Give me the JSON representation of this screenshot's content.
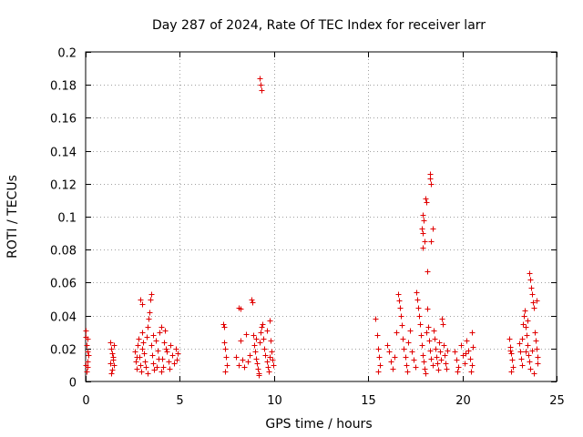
{
  "chart_data": {
    "type": "scatter",
    "title": "Day 287 of 2024, Rate Of TEC Index for receiver larr",
    "xlabel": "GPS time / hours",
    "ylabel": "ROTI / TECUs",
    "xlim": [
      0,
      25
    ],
    "ylim": [
      0,
      0.2
    ],
    "xticks": [
      0,
      5,
      10,
      15,
      20,
      25
    ],
    "yticks": [
      0,
      0.02,
      0.04,
      0.06,
      0.08,
      0.1,
      0.12,
      0.14,
      0.16,
      0.18,
      0.2
    ],
    "xtick_labels": [
      "0",
      "5",
      "10",
      "15",
      "20",
      "25"
    ],
    "ytick_labels": [
      "0",
      "0.02",
      "0.04",
      "0.06",
      "0.08",
      "0.1",
      "0.12",
      "0.14",
      "0.16",
      "0.18",
      "0.2"
    ],
    "grid": true,
    "marker": "plus",
    "marker_color": "#e00000",
    "series": [
      {
        "points": [
          [
            0.0,
            0.031
          ],
          [
            0.02,
            0.027
          ],
          [
            0.05,
            0.022
          ],
          [
            0.08,
            0.018
          ],
          [
            0.1,
            0.012
          ],
          [
            0.12,
            0.009
          ],
          [
            0.15,
            0.016
          ],
          [
            0.0,
            0.01
          ],
          [
            0.05,
            0.006
          ],
          [
            0.1,
            0.026
          ],
          [
            1.3,
            0.024
          ],
          [
            1.35,
            0.02
          ],
          [
            1.4,
            0.017
          ],
          [
            1.45,
            0.013
          ],
          [
            1.5,
            0.01
          ],
          [
            1.4,
            0.007
          ],
          [
            1.35,
            0.005
          ],
          [
            1.5,
            0.022
          ],
          [
            1.45,
            0.015
          ],
          [
            1.3,
            0.011
          ],
          [
            2.6,
            0.018
          ],
          [
            2.65,
            0.012
          ],
          [
            2.7,
            0.008
          ],
          [
            2.75,
            0.022
          ],
          [
            2.8,
            0.026
          ],
          [
            2.85,
            0.015
          ],
          [
            2.9,
            0.01
          ],
          [
            2.95,
            0.006
          ],
          [
            3.0,
            0.03
          ],
          [
            3.0,
            0.02
          ],
          [
            2.9,
            0.05
          ],
          [
            3.0,
            0.047
          ],
          [
            3.05,
            0.024
          ],
          [
            3.1,
            0.017
          ],
          [
            3.15,
            0.012
          ],
          [
            3.2,
            0.009
          ],
          [
            3.25,
            0.027
          ],
          [
            3.3,
            0.033
          ],
          [
            3.35,
            0.038
          ],
          [
            3.4,
            0.042
          ],
          [
            3.45,
            0.05
          ],
          [
            3.5,
            0.053
          ],
          [
            3.5,
            0.022
          ],
          [
            3.55,
            0.016
          ],
          [
            3.6,
            0.011
          ],
          [
            3.65,
            0.007
          ],
          [
            3.7,
            0.025
          ],
          [
            3.8,
            0.019
          ],
          [
            3.9,
            0.03
          ],
          [
            4.0,
            0.033
          ],
          [
            4.05,
            0.014
          ],
          [
            4.1,
            0.009
          ],
          [
            4.15,
            0.024
          ],
          [
            4.2,
            0.031
          ],
          [
            4.3,
            0.018
          ],
          [
            4.4,
            0.012
          ],
          [
            4.5,
            0.022
          ],
          [
            4.6,
            0.016
          ],
          [
            4.7,
            0.011
          ],
          [
            4.8,
            0.02
          ],
          [
            4.85,
            0.013
          ],
          [
            4.9,
            0.017
          ],
          [
            3.3,
            0.005
          ],
          [
            3.6,
            0.028
          ],
          [
            4.0,
            0.006
          ],
          [
            2.7,
            0.015
          ],
          [
            3.85,
            0.014
          ],
          [
            4.45,
            0.008
          ],
          [
            4.25,
            0.02
          ],
          [
            3.75,
            0.009
          ],
          [
            7.3,
            0.035
          ],
          [
            7.35,
            0.033
          ],
          [
            7.4,
            0.02
          ],
          [
            7.45,
            0.015
          ],
          [
            7.5,
            0.01
          ],
          [
            7.4,
            0.006
          ],
          [
            7.35,
            0.024
          ],
          [
            8.0,
            0.015
          ],
          [
            8.1,
            0.01
          ],
          [
            8.2,
            0.025
          ],
          [
            8.3,
            0.013
          ],
          [
            8.4,
            0.009
          ],
          [
            8.5,
            0.029
          ],
          [
            8.6,
            0.012
          ],
          [
            8.7,
            0.016
          ],
          [
            8.2,
            0.044
          ],
          [
            8.1,
            0.045
          ],
          [
            8.8,
            0.05
          ],
          [
            8.85,
            0.048
          ],
          [
            8.9,
            0.028
          ],
          [
            8.95,
            0.022
          ],
          [
            9.0,
            0.018
          ],
          [
            9.05,
            0.014
          ],
          [
            9.1,
            0.011
          ],
          [
            9.15,
            0.008
          ],
          [
            9.2,
            0.005
          ],
          [
            9.25,
            0.024
          ],
          [
            9.3,
            0.03
          ],
          [
            9.35,
            0.033
          ],
          [
            9.4,
            0.035
          ],
          [
            9.45,
            0.026
          ],
          [
            9.5,
            0.02
          ],
          [
            9.55,
            0.016
          ],
          [
            9.6,
            0.012
          ],
          [
            9.65,
            0.009
          ],
          [
            9.7,
            0.006
          ],
          [
            9.75,
            0.037
          ],
          [
            9.8,
            0.025
          ],
          [
            9.85,
            0.018
          ],
          [
            9.9,
            0.013
          ],
          [
            9.95,
            0.01
          ],
          [
            9.05,
            0.026
          ],
          [
            9.2,
            0.004
          ],
          [
            9.6,
            0.031
          ],
          [
            9.75,
            0.015
          ],
          [
            9.25,
            0.184
          ],
          [
            9.3,
            0.18
          ],
          [
            9.33,
            0.177
          ],
          [
            15.4,
            0.038
          ],
          [
            15.45,
            0.028
          ],
          [
            15.5,
            0.02
          ],
          [
            15.55,
            0.015
          ],
          [
            15.6,
            0.01
          ],
          [
            15.5,
            0.006
          ],
          [
            16.0,
            0.022
          ],
          [
            16.1,
            0.018
          ],
          [
            16.2,
            0.012
          ],
          [
            16.3,
            0.008
          ],
          [
            16.4,
            0.015
          ],
          [
            16.5,
            0.03
          ],
          [
            16.6,
            0.053
          ],
          [
            16.65,
            0.049
          ],
          [
            16.7,
            0.045
          ],
          [
            16.75,
            0.04
          ],
          [
            16.8,
            0.034
          ],
          [
            16.85,
            0.026
          ],
          [
            16.9,
            0.02
          ],
          [
            16.95,
            0.015
          ],
          [
            17.0,
            0.01
          ],
          [
            17.05,
            0.006
          ],
          [
            17.1,
            0.024
          ],
          [
            17.2,
            0.031
          ],
          [
            17.3,
            0.018
          ],
          [
            17.4,
            0.013
          ],
          [
            17.5,
            0.009
          ],
          [
            17.55,
            0.054
          ],
          [
            17.6,
            0.05
          ],
          [
            17.65,
            0.045
          ],
          [
            17.7,
            0.04
          ],
          [
            17.75,
            0.035
          ],
          [
            17.8,
            0.028
          ],
          [
            17.85,
            0.022
          ],
          [
            17.9,
            0.016
          ],
          [
            17.95,
            0.012
          ],
          [
            18.0,
            0.008
          ],
          [
            18.05,
            0.005
          ],
          [
            18.1,
            0.03
          ],
          [
            18.15,
            0.044
          ],
          [
            18.2,
            0.033
          ],
          [
            18.25,
            0.025
          ],
          [
            18.3,
            0.019
          ],
          [
            18.35,
            0.014
          ],
          [
            18.4,
            0.01
          ],
          [
            18.45,
            0.031
          ],
          [
            18.5,
            0.026
          ],
          [
            18.55,
            0.02
          ],
          [
            18.6,
            0.015
          ],
          [
            18.65,
            0.011
          ],
          [
            18.7,
            0.007
          ],
          [
            18.75,
            0.024
          ],
          [
            18.8,
            0.018
          ],
          [
            18.85,
            0.013
          ],
          [
            18.9,
            0.038
          ],
          [
            18.95,
            0.035
          ],
          [
            19.0,
            0.022
          ],
          [
            19.05,
            0.016
          ],
          [
            19.1,
            0.011
          ],
          [
            19.15,
            0.008
          ],
          [
            19.2,
            0.019
          ],
          [
            17.9,
            0.101
          ],
          [
            17.95,
            0.098
          ],
          [
            17.85,
            0.093
          ],
          [
            17.9,
            0.09
          ],
          [
            17.9,
            0.081
          ],
          [
            18.0,
            0.085
          ],
          [
            18.05,
            0.111
          ],
          [
            18.1,
            0.109
          ],
          [
            18.15,
            0.067
          ],
          [
            18.3,
            0.126
          ],
          [
            18.3,
            0.123
          ],
          [
            18.35,
            0.12
          ],
          [
            18.4,
            0.093
          ],
          [
            18.35,
            0.085
          ],
          [
            19.6,
            0.018
          ],
          [
            19.7,
            0.013
          ],
          [
            19.8,
            0.009
          ],
          [
            19.9,
            0.022
          ],
          [
            20.0,
            0.016
          ],
          [
            20.1,
            0.011
          ],
          [
            20.2,
            0.025
          ],
          [
            20.3,
            0.019
          ],
          [
            20.4,
            0.014
          ],
          [
            20.5,
            0.03
          ],
          [
            20.55,
            0.021
          ],
          [
            20.5,
            0.01
          ],
          [
            20.45,
            0.006
          ],
          [
            19.75,
            0.006
          ],
          [
            20.15,
            0.017
          ],
          [
            22.5,
            0.026
          ],
          [
            22.55,
            0.021
          ],
          [
            22.6,
            0.017
          ],
          [
            22.65,
            0.013
          ],
          [
            22.7,
            0.009
          ],
          [
            22.6,
            0.006
          ],
          [
            22.55,
            0.019
          ],
          [
            23.0,
            0.023
          ],
          [
            23.05,
            0.018
          ],
          [
            23.1,
            0.014
          ],
          [
            23.15,
            0.01
          ],
          [
            23.2,
            0.035
          ],
          [
            23.25,
            0.04
          ],
          [
            23.3,
            0.043
          ],
          [
            23.35,
            0.033
          ],
          [
            23.4,
            0.028
          ],
          [
            23.45,
            0.022
          ],
          [
            23.5,
            0.016
          ],
          [
            23.55,
            0.012
          ],
          [
            23.6,
            0.008
          ],
          [
            23.65,
            0.057
          ],
          [
            23.7,
            0.053
          ],
          [
            23.75,
            0.048
          ],
          [
            23.8,
            0.045
          ],
          [
            23.55,
            0.066
          ],
          [
            23.6,
            0.062
          ],
          [
            23.45,
            0.037
          ],
          [
            23.85,
            0.03
          ],
          [
            23.9,
            0.025
          ],
          [
            23.95,
            0.02
          ],
          [
            24.0,
            0.015
          ],
          [
            24.0,
            0.011
          ],
          [
            23.95,
            0.049
          ],
          [
            23.8,
            0.005
          ],
          [
            23.35,
            0.018
          ],
          [
            23.15,
            0.026
          ],
          [
            23.7,
            0.019
          ]
        ]
      }
    ]
  }
}
